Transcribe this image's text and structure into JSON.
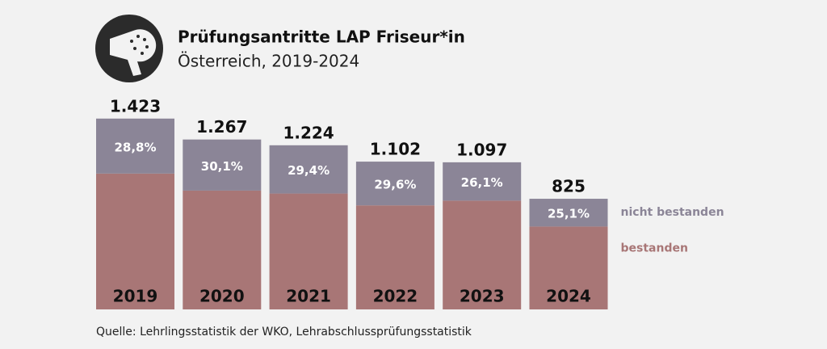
{
  "chart_data": {
    "type": "stacked_bar",
    "title": "Prüfungsantritte LAP Friseur*in",
    "subtitle": "Österreich, 2019-2024",
    "source": "Quelle: Lehrlingsstatistik der WKO, Lehrabschlussprüfungsstatistik",
    "categories": [
      "2019",
      "2020",
      "2021",
      "2022",
      "2023",
      "2024"
    ],
    "series": [
      {
        "name": "bestanden",
        "color": "#a87676",
        "values": [
          1013,
          886,
          864,
          776,
          811,
          618
        ]
      },
      {
        "name": "nicht bestanden",
        "color": "#8b8597",
        "values": [
          410,
          381,
          360,
          326,
          286,
          207
        ]
      }
    ],
    "totals": [
      {
        "value": 1423,
        "label": "1.423"
      },
      {
        "value": 1267,
        "label": "1.267"
      },
      {
        "value": 1224,
        "label": "1.224"
      },
      {
        "value": 1102,
        "label": "1.102"
      },
      {
        "value": 1097,
        "label": "1.097"
      },
      825
    ],
    "shares": [
      {
        "value": 28.8,
        "label": "28,8%"
      },
      {
        "value": 30.1,
        "label": "30,1%"
      },
      {
        "value": 29.4,
        "label": "29,4%"
      },
      {
        "value": 29.6,
        "label": "29,6%"
      },
      {
        "value": 26.1,
        "label": "26,1%"
      },
      {
        "value": 25.1,
        "label": "25,1%"
      }
    ],
    "ylim": [
      0,
      1500
    ]
  }
}
